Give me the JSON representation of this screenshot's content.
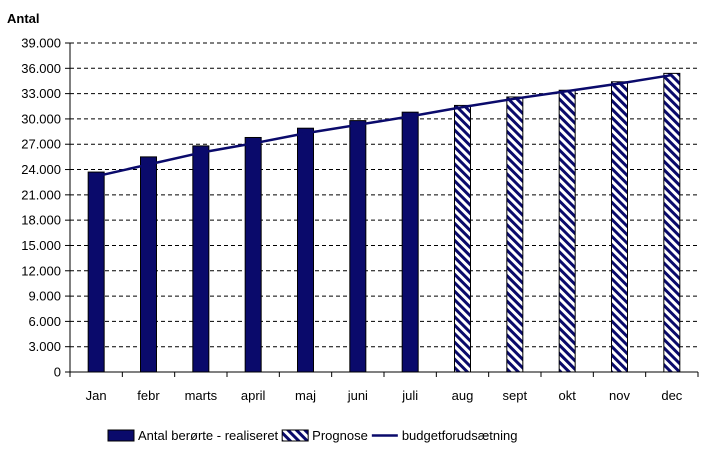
{
  "chart_data": {
    "type": "bar",
    "ylabel": "Antal",
    "categories": [
      "Jan",
      "febr",
      "marts",
      "april",
      "maj",
      "juni",
      "juli",
      "aug",
      "sept",
      "okt",
      "nov",
      "dec"
    ],
    "ylim": [
      0,
      39000
    ],
    "yticks": [
      "0",
      "3.000",
      "6.000",
      "9.000",
      "12.000",
      "15.000",
      "18.000",
      "21.000",
      "24.000",
      "27.000",
      "30.000",
      "33.000",
      "36.000",
      "39.000"
    ],
    "ytick_values": [
      0,
      3000,
      6000,
      9000,
      12000,
      15000,
      18000,
      21000,
      24000,
      27000,
      30000,
      33000,
      36000,
      39000
    ],
    "grid": true,
    "legend_position": "bottom",
    "series": [
      {
        "name": "Antal berørte - realiseret",
        "kind": "bar",
        "style": "solid",
        "color": "#0a0a6b",
        "values": [
          23700,
          25500,
          26800,
          27800,
          28900,
          29800,
          30800,
          null,
          null,
          null,
          null,
          null
        ]
      },
      {
        "name": "Prognose",
        "kind": "bar",
        "style": "hatched",
        "color": "#0a0a6b",
        "values": [
          null,
          null,
          null,
          null,
          null,
          null,
          null,
          31600,
          32600,
          33400,
          34400,
          35400
        ]
      },
      {
        "name": "budgetforudsætning",
        "kind": "line",
        "color": "#0a0a6b",
        "values": [
          23200,
          24600,
          26000,
          27100,
          28300,
          29300,
          30300,
          31400,
          32400,
          33300,
          34200,
          35200
        ]
      }
    ]
  }
}
